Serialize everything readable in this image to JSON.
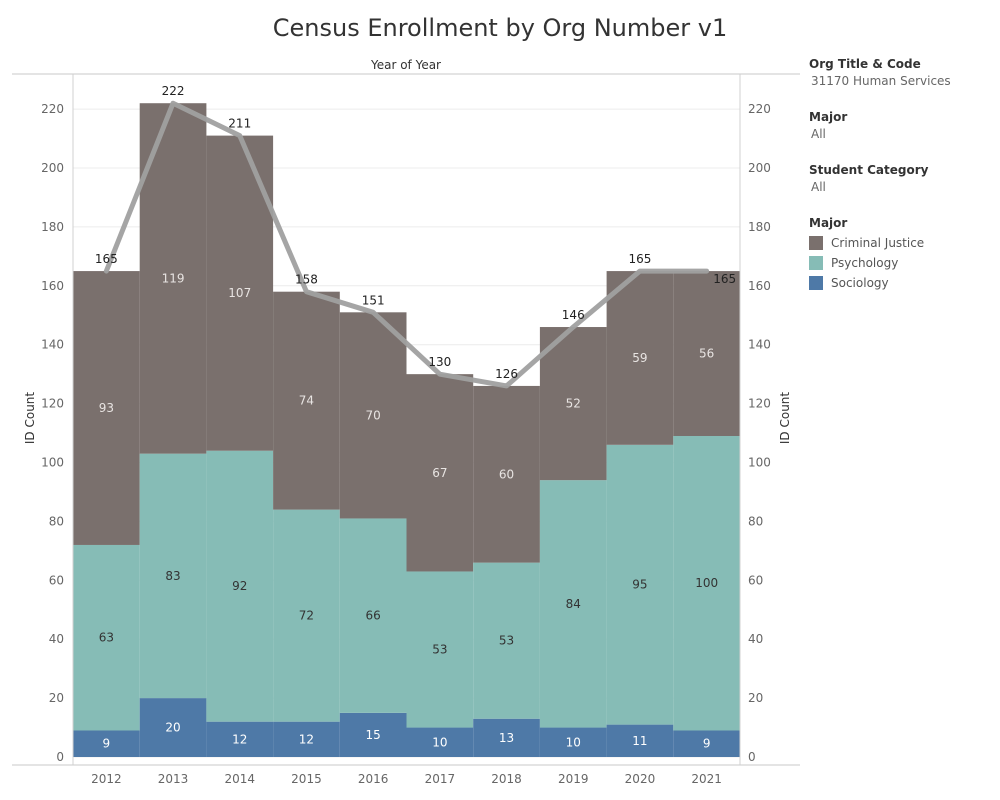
{
  "title": "Census Enrollment by Org Number v1",
  "filters": {
    "org": {
      "label": "Org Title & Code",
      "value": "31170 Human Services"
    },
    "major": {
      "label": "Major",
      "value": "All"
    },
    "student_category": {
      "label": "Student Category",
      "value": "All"
    }
  },
  "legend": {
    "title": "Major",
    "items": [
      {
        "label": "Criminal Justice",
        "color": "#7a706d"
      },
      {
        "label": "Psychology",
        "color": "#86bcb6"
      },
      {
        "label": "Sociology",
        "color": "#4e79a7"
      }
    ]
  },
  "chart_data": {
    "type": "bar",
    "stacked": true,
    "column_header": "Year of Year",
    "xlabel": "",
    "ylabel": "ID Count",
    "ylabel_right": "ID Count",
    "ylim": [
      0,
      230
    ],
    "yticks": [
      0,
      20,
      40,
      60,
      80,
      100,
      120,
      140,
      160,
      180,
      200,
      220
    ],
    "grid": true,
    "legend_position": "right",
    "categories": [
      "2012",
      "2013",
      "2014",
      "2015",
      "2016",
      "2017",
      "2018",
      "2019",
      "2020",
      "2021"
    ],
    "series": [
      {
        "name": "Sociology",
        "color": "#4e79a7",
        "values": [
          9,
          20,
          12,
          12,
          15,
          10,
          13,
          10,
          11,
          9
        ]
      },
      {
        "name": "Psychology",
        "color": "#86bcb6",
        "values": [
          63,
          83,
          92,
          72,
          66,
          53,
          53,
          84,
          95,
          100
        ]
      },
      {
        "name": "Criminal Justice",
        "color": "#7a706d",
        "values": [
          93,
          119,
          107,
          74,
          70,
          67,
          60,
          52,
          59,
          56
        ]
      }
    ],
    "total_line": {
      "color": "#a0a0a0",
      "values": [
        165,
        222,
        211,
        158,
        151,
        130,
        126,
        146,
        165,
        165
      ]
    }
  }
}
